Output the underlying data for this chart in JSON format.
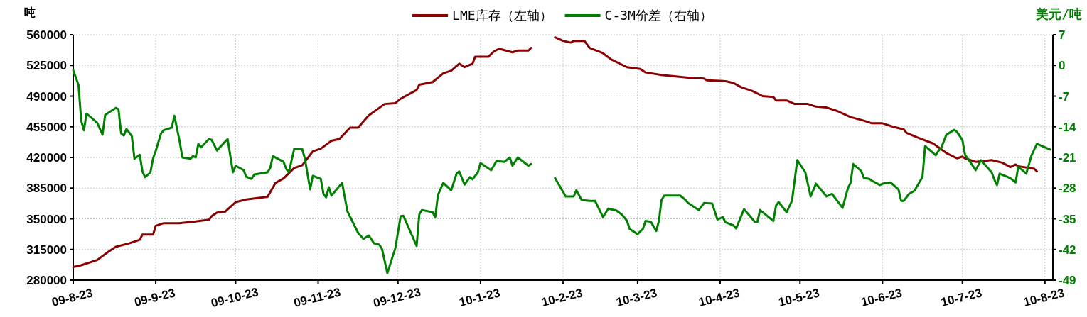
{
  "chart_data": {
    "type": "line",
    "ylabel": "吨",
    "y2label": "美元/吨",
    "legend": "top",
    "grid": true,
    "xlim": [
      "2009-08-23",
      "2010-08-26"
    ],
    "xticks": [
      {
        "value": "2009-08-23",
        "label": "09-8-23"
      },
      {
        "value": "2009-09-23",
        "label": "09-9-23"
      },
      {
        "value": "2009-10-23",
        "label": "09-10-23"
      },
      {
        "value": "2009-11-23",
        "label": "09-11-23"
      },
      {
        "value": "2009-12-23",
        "label": "09-12-23"
      },
      {
        "value": "2010-01-23",
        "label": "10-1-23"
      },
      {
        "value": "2010-02-23",
        "label": "10-2-23"
      },
      {
        "value": "2010-03-23",
        "label": "10-3-23"
      },
      {
        "value": "2010-04-23",
        "label": "10-4-23"
      },
      {
        "value": "2010-05-23",
        "label": "10-5-23"
      },
      {
        "value": "2010-06-23",
        "label": "10-6-23"
      },
      {
        "value": "2010-07-23",
        "label": "10-7-23"
      },
      {
        "value": "2010-08-23",
        "label": "10-8-23"
      }
    ],
    "ylim": [
      280000,
      560000
    ],
    "yticks": [
      280000,
      315000,
      350000,
      385000,
      420000,
      455000,
      490000,
      525000,
      560000
    ],
    "y2lim": [
      -49,
      7
    ],
    "y2ticks": [
      -49,
      -42,
      -35,
      -28,
      -21,
      -14,
      -7,
      0,
      7
    ],
    "series": [
      {
        "name": "LME库存（左轴）",
        "color": "#8b0000",
        "axis": "y",
        "x": [
          "2009-08-23",
          "2009-08-26",
          "2009-09-01",
          "2009-09-05",
          "2009-09-08",
          "2009-09-13",
          "2009-09-17",
          "2009-09-18",
          "2009-09-22",
          "2009-09-23",
          "2009-09-26",
          "2009-10-02",
          "2009-10-08",
          "2009-10-13",
          "2009-10-14",
          "2009-10-16",
          "2009-10-19",
          "2009-10-23",
          "2009-10-27",
          "2009-11-04",
          "2009-11-07",
          "2009-11-10",
          "2009-11-14",
          "2009-11-17",
          "2009-11-21",
          "2009-11-24",
          "2009-11-28",
          "2009-12-01",
          "2009-12-05",
          "2009-12-08",
          "2009-12-12",
          "2009-12-18",
          "2009-12-22",
          "2009-12-24",
          "2009-12-30",
          "2009-12-31",
          "2010-01-05",
          "2010-01-09",
          "2010-01-12",
          "2010-01-15",
          "2010-01-17",
          "2010-01-20",
          "2010-01-21",
          "2010-01-26",
          "2010-01-28",
          "2010-01-30",
          "2010-02-04",
          "2010-02-06",
          "2010-02-10",
          "2010-02-11",
          "2010-02-15",
          "2010-02-20",
          "2010-02-23",
          "2010-02-26",
          "2010-02-27",
          "2010-03-03",
          "2010-03-05",
          "2010-03-10",
          "2010-03-13",
          "2010-03-19",
          "2010-03-24",
          "2010-03-26",
          "2010-04-01",
          "2010-04-11",
          "2010-04-17",
          "2010-04-18",
          "2010-04-25",
          "2010-04-28",
          "2010-05-01",
          "2010-05-05",
          "2010-05-09",
          "2010-05-13",
          "2010-05-14",
          "2010-05-18",
          "2010-05-21",
          "2010-05-26",
          "2010-05-29",
          "2010-06-02",
          "2010-06-06",
          "2010-06-11",
          "2010-06-16",
          "2010-06-19",
          "2010-06-23",
          "2010-06-27",
          "2010-07-01",
          "2010-07-02",
          "2010-07-06",
          "2010-07-12",
          "2010-07-17",
          "2010-07-21",
          "2010-07-23",
          "2010-07-24",
          "2010-07-28",
          "2010-08-03",
          "2010-08-07",
          "2010-08-10",
          "2010-08-12",
          "2010-08-13",
          "2010-08-19",
          "2010-08-20"
        ],
        "values": [
          295000,
          297000,
          303000,
          312000,
          318000,
          322000,
          326000,
          332000,
          332000,
          342000,
          345000,
          345000,
          347000,
          349000,
          353000,
          357000,
          358000,
          369000,
          372000,
          375000,
          391000,
          396000,
          408000,
          411000,
          427000,
          430000,
          439000,
          441000,
          454000,
          454000,
          468000,
          481000,
          482000,
          487000,
          497000,
          503000,
          506000,
          516000,
          519000,
          527000,
          523000,
          527000,
          535000,
          535000,
          541000,
          544000,
          540000,
          542000,
          542000,
          545000,
          null,
          557000,
          553000,
          551000,
          553000,
          553000,
          545000,
          539000,
          532000,
          523000,
          521000,
          517000,
          514000,
          511000,
          510000,
          508000,
          507000,
          505000,
          500000,
          496000,
          490000,
          489000,
          485000,
          485000,
          481000,
          481000,
          478000,
          477000,
          473000,
          466000,
          462000,
          459000,
          459000,
          455000,
          452000,
          448000,
          443000,
          436000,
          425000,
          419000,
          421000,
          419000,
          415000,
          417000,
          414000,
          409000,
          412000,
          410000,
          407000,
          404000
        ]
      },
      {
        "name": "C-3M价差（右轴）",
        "color": "#008000",
        "axis": "y2",
        "x": [
          "2009-08-23",
          "2009-08-25",
          "2009-08-26",
          "2009-08-27",
          "2009-08-28",
          "2009-09-01",
          "2009-09-03",
          "2009-09-04",
          "2009-09-08",
          "2009-09-09",
          "2009-09-10",
          "2009-09-11",
          "2009-09-12",
          "2009-09-14",
          "2009-09-15",
          "2009-09-17",
          "2009-09-18",
          "2009-09-19",
          "2009-09-21",
          "2009-09-22",
          "2009-09-23",
          "2009-09-25",
          "2009-09-26",
          "2009-09-29",
          "2009-09-30",
          "2009-10-02",
          "2009-10-03",
          "2009-10-06",
          "2009-10-07",
          "2009-10-08",
          "2009-10-09",
          "2009-10-10",
          "2009-10-13",
          "2009-10-14",
          "2009-10-16",
          "2009-10-20",
          "2009-10-22",
          "2009-10-23",
          "2009-10-26",
          "2009-10-27",
          "2009-10-29",
          "2009-10-30",
          "2009-11-04",
          "2009-11-05",
          "2009-11-06",
          "2009-11-10",
          "2009-11-11",
          "2009-11-12",
          "2009-11-14",
          "2009-11-17",
          "2009-11-18",
          "2009-11-20",
          "2009-11-21",
          "2009-11-24",
          "2009-11-25",
          "2009-11-26",
          "2009-11-27",
          "2009-11-28",
          "2009-12-02",
          "2009-12-04",
          "2009-12-08",
          "2009-12-10",
          "2009-12-12",
          "2009-12-14",
          "2009-12-16",
          "2009-12-17",
          "2009-12-19",
          "2009-12-22",
          "2009-12-24",
          "2009-12-25",
          "2009-12-30",
          "2009-12-31",
          "2010-01-01",
          "2010-01-05",
          "2010-01-06",
          "2010-01-07",
          "2010-01-09",
          "2010-01-12",
          "2010-01-14",
          "2010-01-15",
          "2010-01-17",
          "2010-01-19",
          "2010-01-20",
          "2010-01-22",
          "2010-01-23",
          "2010-01-27",
          "2010-01-29",
          "2010-02-01",
          "2010-02-03",
          "2010-02-04",
          "2010-02-06",
          "2010-02-10",
          "2010-02-11",
          "2010-02-15",
          "2010-02-20",
          "2010-02-24",
          "2010-02-27",
          "2010-02-28",
          "2010-03-02",
          "2010-03-05",
          "2010-03-07",
          "2010-03-10",
          "2010-03-12",
          "2010-03-15",
          "2010-03-17",
          "2010-03-19",
          "2010-03-20",
          "2010-03-23",
          "2010-03-25",
          "2010-03-26",
          "2010-03-28",
          "2010-03-30",
          "2010-03-31",
          "2010-04-01",
          "2010-04-02",
          "2010-04-08",
          "2010-04-10",
          "2010-04-11",
          "2010-04-15",
          "2010-04-17",
          "2010-04-20",
          "2010-04-22",
          "2010-04-24",
          "2010-04-25",
          "2010-04-28",
          "2010-04-29",
          "2010-05-02",
          "2010-05-06",
          "2010-05-07",
          "2010-05-08",
          "2010-05-13",
          "2010-05-14",
          "2010-05-15",
          "2010-05-18",
          "2010-05-20",
          "2010-05-22",
          "2010-05-25",
          "2010-05-27",
          "2010-05-29",
          "2010-06-02",
          "2010-06-04",
          "2010-06-08",
          "2010-06-10",
          "2010-06-11",
          "2010-06-12",
          "2010-06-15",
          "2010-06-16",
          "2010-06-18",
          "2010-06-19",
          "2010-06-22",
          "2010-06-23",
          "2010-06-26",
          "2010-06-29",
          "2010-06-30",
          "2010-07-01",
          "2010-07-03",
          "2010-07-05",
          "2010-07-07",
          "2010-07-08",
          "2010-07-09",
          "2010-07-13",
          "2010-07-14",
          "2010-07-15",
          "2010-07-17",
          "2010-07-20",
          "2010-07-21",
          "2010-07-23",
          "2010-07-24",
          "2010-07-26",
          "2010-07-28",
          "2010-07-30",
          "2010-08-03",
          "2010-08-04",
          "2010-08-05",
          "2010-08-06",
          "2010-08-10",
          "2010-08-12",
          "2010-08-13",
          "2010-08-16",
          "2010-08-17",
          "2010-08-18",
          "2010-08-20",
          "2010-08-25"
        ],
        "values": [
          -1.1,
          -4.5,
          -12.6,
          -14.8,
          -11.0,
          -13.1,
          -15.8,
          -11.3,
          -9.7,
          -10.0,
          -15.5,
          -16.0,
          -14.5,
          -16.1,
          -21.3,
          -20.4,
          -24.2,
          -25.5,
          -24.4,
          -21.2,
          -19.5,
          -15.5,
          -14.8,
          -14.2,
          -11.5,
          -17.4,
          -21.0,
          -21.3,
          -20.7,
          -21.0,
          -17.9,
          -18.7,
          -16.8,
          -17.0,
          -19.4,
          -16.8,
          -24.4,
          -22.9,
          -23.9,
          -25.4,
          -25.9,
          -24.9,
          -24.4,
          -23.4,
          -20.7,
          -22.0,
          -23.6,
          -24.4,
          -19.1,
          -19.1,
          -21.2,
          -28.3,
          -25.2,
          -25.9,
          -29.3,
          -30.1,
          -27.8,
          -29.7,
          -26.8,
          -33.3,
          -38.2,
          -39.6,
          -38.8,
          -40.6,
          -40.9,
          -41.9,
          -47.4,
          -41.7,
          -34.4,
          -34.3,
          -41.2,
          -34.0,
          -33.0,
          -33.5,
          -34.6,
          -29.6,
          -26.8,
          -28.5,
          -24.7,
          -24.2,
          -27.2,
          -25.5,
          -26.0,
          -24.4,
          -22.3,
          -23.9,
          -21.8,
          -22.0,
          -21.0,
          -22.9,
          -21.0,
          -22.9,
          -22.5,
          null,
          -25.7,
          -29.9,
          -29.9,
          -28.5,
          -30.7,
          -30.9,
          -30.9,
          -34.6,
          -32.7,
          -33.1,
          -34.0,
          -35.4,
          -37.3,
          -38.5,
          -37.3,
          -35.5,
          -35.7,
          -37.8,
          -35.5,
          -30.7,
          -29.7,
          -29.7,
          -30.7,
          -31.4,
          -33.0,
          -31.4,
          -31.5,
          -35.2,
          -34.6,
          -35.8,
          -36.5,
          -37.2,
          -32.8,
          -35.7,
          -35.7,
          -33.0,
          -35.5,
          -32.0,
          -31.2,
          -33.5,
          -30.9,
          -21.6,
          -24.4,
          -29.9,
          -27.0,
          -29.9,
          -29.3,
          -32.5,
          -28.0,
          -26.8,
          -22.5,
          -24.1,
          -25.7,
          -25.9,
          -26.3,
          -27.3,
          -27.0,
          -26.7,
          -28.3,
          -30.9,
          -30.9,
          -29.3,
          -28.6,
          -26.5,
          -25.5,
          -18.4,
          -20.5,
          -19.5,
          -18.9,
          -15.8,
          -14.7,
          -15.2,
          -17.0,
          -20.4,
          -22.1,
          -23.9,
          -21.6,
          -24.4,
          -26.0,
          -27.3,
          -24.7,
          -25.7,
          -26.7,
          -23.1,
          -24.7,
          -22.6,
          -20.5,
          -17.9,
          -19.2
        ]
      }
    ]
  }
}
